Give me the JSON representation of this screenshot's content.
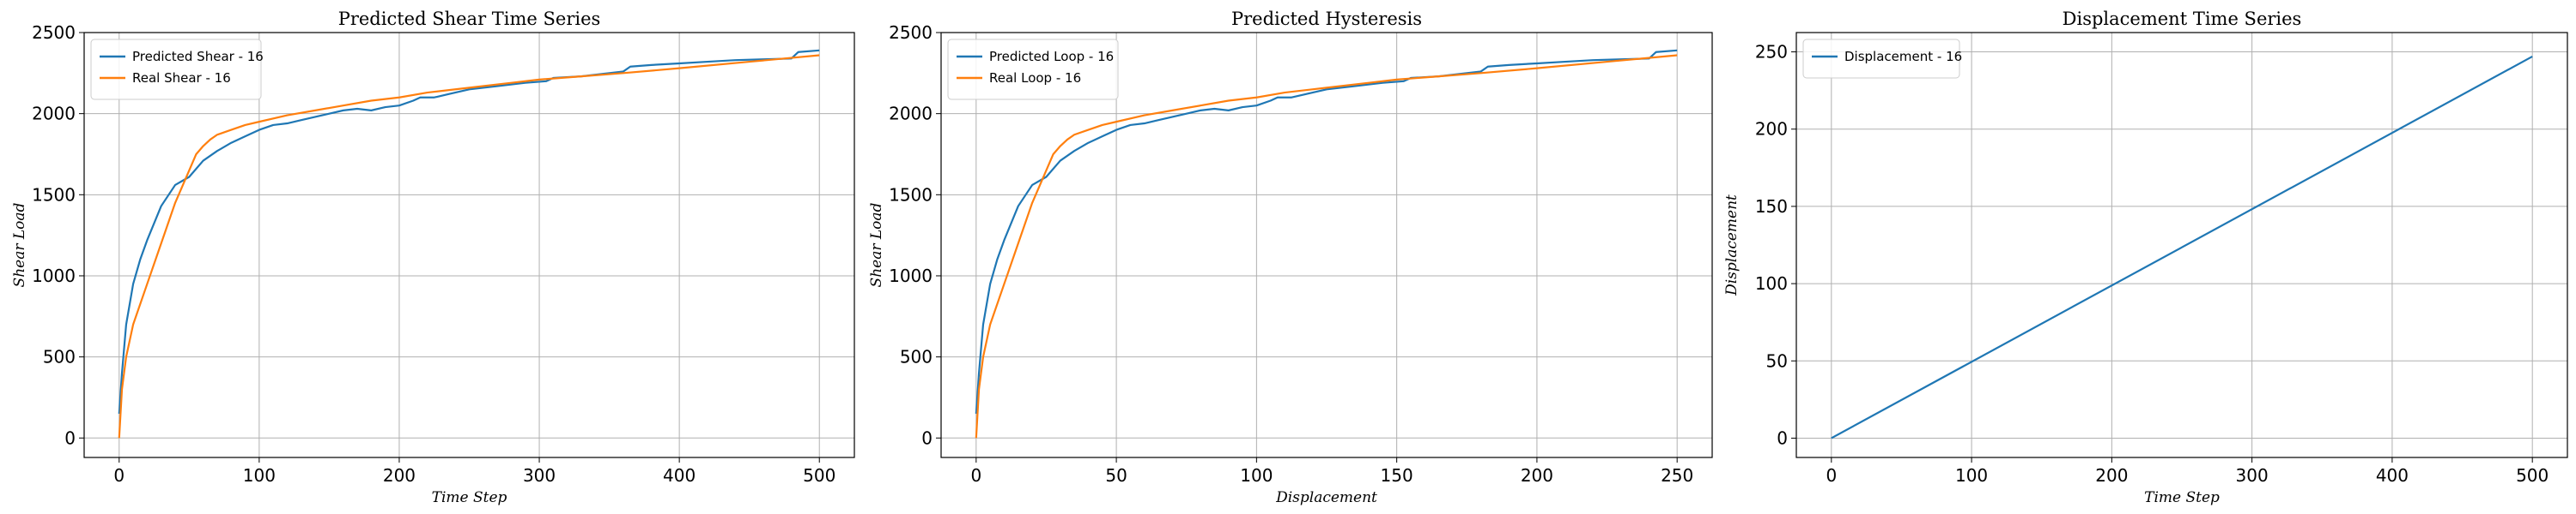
{
  "chart_data": [
    {
      "type": "line",
      "title": "Predicted Shear Time Series",
      "xlabel": "Time Step",
      "ylabel": "Shear Load",
      "xlim": [
        -25,
        525
      ],
      "ylim": [
        -120,
        2500
      ],
      "xticks": [
        0,
        100,
        200,
        300,
        400,
        500
      ],
      "yticks": [
        0,
        500,
        1000,
        1500,
        2000,
        2500
      ],
      "grid": true,
      "legend_position": "top-left",
      "series": [
        {
          "name": "Predicted Shear - 16",
          "color": "#1f77b4",
          "x": [
            0,
            2,
            5,
            10,
            15,
            20,
            30,
            40,
            50,
            60,
            70,
            80,
            90,
            100,
            110,
            120,
            130,
            140,
            150,
            160,
            170,
            180,
            190,
            200,
            210,
            215,
            225,
            235,
            250,
            270,
            290,
            305,
            310,
            330,
            350,
            360,
            365,
            380,
            400,
            420,
            440,
            460,
            480,
            485,
            500
          ],
          "y": [
            150,
            400,
            700,
            950,
            1100,
            1220,
            1430,
            1560,
            1610,
            1710,
            1770,
            1820,
            1860,
            1900,
            1930,
            1940,
            1960,
            1980,
            2000,
            2020,
            2030,
            2020,
            2040,
            2050,
            2080,
            2100,
            2100,
            2120,
            2150,
            2170,
            2190,
            2200,
            2220,
            2230,
            2250,
            2260,
            2290,
            2300,
            2310,
            2320,
            2330,
            2335,
            2340,
            2380,
            2390
          ]
        },
        {
          "name": "Real Shear - 16",
          "color": "#ff7f0e",
          "x": [
            0,
            2,
            5,
            10,
            20,
            30,
            40,
            50,
            55,
            60,
            65,
            70,
            80,
            90,
            100,
            120,
            140,
            160,
            180,
            200,
            220,
            250,
            280,
            300,
            330,
            360,
            400,
            450,
            500
          ],
          "y": [
            0,
            300,
            500,
            700,
            950,
            1200,
            1450,
            1650,
            1750,
            1800,
            1840,
            1870,
            1900,
            1930,
            1950,
            1990,
            2020,
            2050,
            2080,
            2100,
            2130,
            2160,
            2190,
            2210,
            2230,
            2250,
            2280,
            2320,
            2360
          ]
        }
      ]
    },
    {
      "type": "line",
      "title": "Predicted Hysteresis",
      "xlabel": "Displacement",
      "ylabel": "Shear Load",
      "xlim": [
        -12.5,
        262.5
      ],
      "ylim": [
        -120,
        2500
      ],
      "xticks": [
        0,
        50,
        100,
        150,
        200,
        250
      ],
      "yticks": [
        0,
        500,
        1000,
        1500,
        2000,
        2500
      ],
      "grid": true,
      "legend_position": "top-left",
      "series": [
        {
          "name": "Predicted Loop - 16",
          "color": "#1f77b4",
          "x": [
            0,
            1,
            2.5,
            5,
            7.5,
            10,
            15,
            20,
            25,
            30,
            35,
            40,
            45,
            50,
            55,
            60,
            65,
            70,
            75,
            80,
            85,
            90,
            95,
            100,
            105,
            107.5,
            112.5,
            117.5,
            125,
            135,
            145,
            152.5,
            155,
            165,
            175,
            180,
            182.5,
            190,
            200,
            210,
            220,
            230,
            240,
            242.5,
            250
          ],
          "y": [
            150,
            400,
            700,
            950,
            1100,
            1220,
            1430,
            1560,
            1610,
            1710,
            1770,
            1820,
            1860,
            1900,
            1930,
            1940,
            1960,
            1980,
            2000,
            2020,
            2030,
            2020,
            2040,
            2050,
            2080,
            2100,
            2100,
            2120,
            2150,
            2170,
            2190,
            2200,
            2220,
            2230,
            2250,
            2260,
            2290,
            2300,
            2310,
            2320,
            2330,
            2335,
            2340,
            2380,
            2390
          ]
        },
        {
          "name": "Real Loop - 16",
          "color": "#ff7f0e",
          "x": [
            0,
            1,
            2.5,
            5,
            10,
            15,
            20,
            25,
            27.5,
            30,
            32.5,
            35,
            40,
            45,
            50,
            60,
            70,
            80,
            90,
            100,
            110,
            125,
            140,
            150,
            165,
            180,
            200,
            225,
            250
          ],
          "y": [
            0,
            300,
            500,
            700,
            950,
            1200,
            1450,
            1650,
            1750,
            1800,
            1840,
            1870,
            1900,
            1930,
            1950,
            1990,
            2020,
            2050,
            2080,
            2100,
            2130,
            2160,
            2190,
            2210,
            2230,
            2250,
            2280,
            2320,
            2360
          ]
        }
      ]
    },
    {
      "type": "line",
      "title": "Displacement Time Series",
      "xlabel": "Time Step",
      "ylabel": "Displacement",
      "xlim": [
        -25,
        525
      ],
      "ylim": [
        -12.5,
        262.5
      ],
      "xticks": [
        0,
        100,
        200,
        300,
        400,
        500
      ],
      "yticks": [
        0,
        50,
        100,
        150,
        200,
        250
      ],
      "grid": true,
      "legend_position": "top-left",
      "series": [
        {
          "name": "Displacement - 16",
          "color": "#1f77b4",
          "x": [
            0,
            500
          ],
          "y": [
            0,
            247
          ]
        }
      ]
    }
  ]
}
